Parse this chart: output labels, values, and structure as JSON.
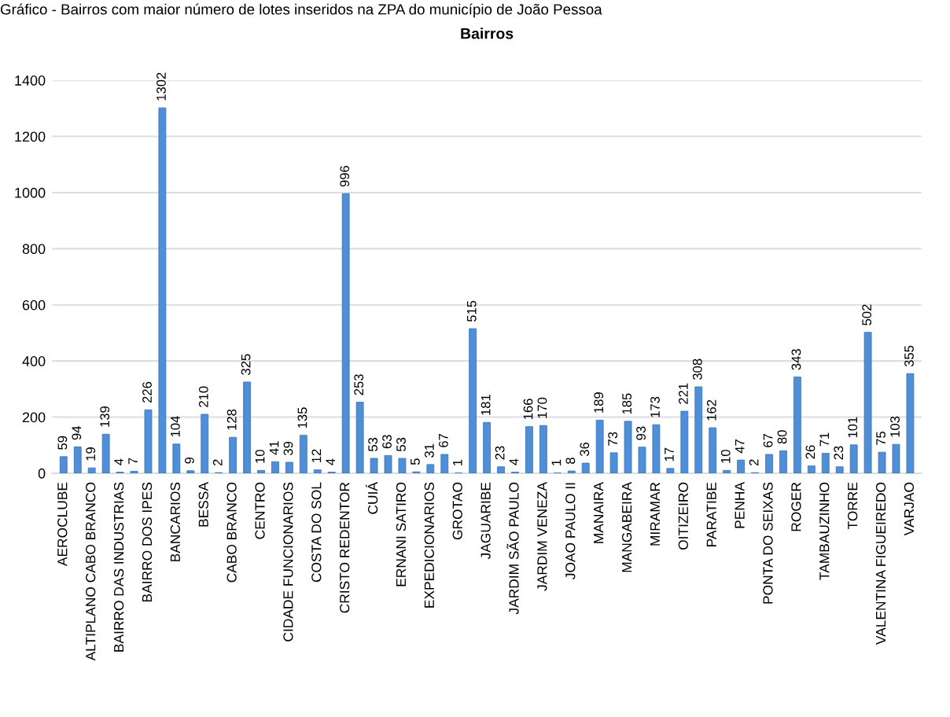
{
  "chart_data": {
    "type": "bar",
    "title": "Bairros",
    "annotations": [
      "Gráfico - Bairros com maior número de lotes inseridos na ZPA do município de João Pessoa"
    ],
    "categories": [
      "AEROCLUBE",
      null,
      "ALTIPLANO CABO BRANCO",
      null,
      "BAIRRO DAS INDUSTRIAS",
      null,
      "BAIRRO DOS IPES",
      null,
      "BANCARIOS",
      null,
      "BESSA",
      null,
      "CABO BRANCO",
      null,
      "CENTRO",
      null,
      "CIDADE FUNCIONARIOS",
      null,
      "COSTA DO SOL",
      null,
      "CRISTO REDENTOR",
      null,
      "CUIÁ",
      null,
      "ERNANI SATIRO",
      null,
      "EXPEDICIONARIOS",
      null,
      "GROTAO",
      null,
      "JAGUARIBE",
      null,
      "JARDIM SÃO PAULO",
      null,
      "JARDIM VENEZA",
      null,
      "JOAO PAULO II",
      null,
      "MANAIRA",
      null,
      "MANGABEIRA",
      null,
      "MIRAMAR",
      null,
      "OITIZEIRO",
      null,
      "PARATIBE",
      null,
      "PENHA",
      null,
      "PONTA DO SEIXAS",
      null,
      "ROGER",
      null,
      "TAMBAUZINHO",
      null,
      "TORRE",
      null,
      "VALENTINA FIGUEIREDO",
      null,
      "VARJAO"
    ],
    "values": [
      59,
      94,
      19,
      139,
      4,
      7,
      226,
      1302,
      104,
      9,
      210,
      2,
      128,
      325,
      10,
      41,
      39,
      135,
      12,
      4,
      996,
      253,
      53,
      63,
      53,
      5,
      31,
      67,
      1,
      515,
      181,
      23,
      4,
      166,
      170,
      1,
      8,
      36,
      189,
      73,
      185,
      93,
      173,
      17,
      221,
      308,
      162,
      10,
      47,
      2,
      67,
      80,
      343,
      26,
      71,
      23,
      101,
      502,
      75,
      103,
      355
    ],
    "color": "#4f8fd8",
    "ylim": [
      0,
      1400
    ],
    "yticks": [
      0,
      200,
      400,
      600,
      800,
      1000,
      1200,
      1400
    ],
    "grid": "y",
    "data_labels": true
  }
}
